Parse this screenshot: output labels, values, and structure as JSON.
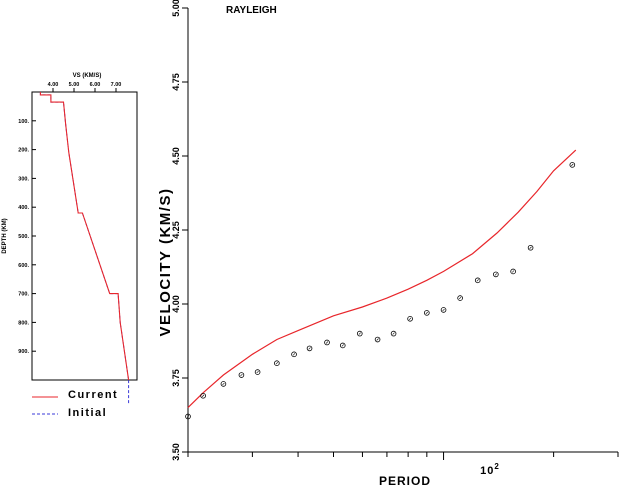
{
  "chart_data": [
    {
      "type": "line",
      "title": "RAYLEIGH",
      "xlabel": "PERIOD",
      "ylabel": "VELOCITY (KM/S)",
      "xscale": "log",
      "xlim": [
        20,
        300
      ],
      "ylim": [
        3.5,
        5.0
      ],
      "yticks": [
        "3.50",
        "3.75",
        "4.00",
        "4.25",
        "4.50",
        "4.75",
        "5.00"
      ],
      "xtick_label_base": "10",
      "xtick_label_exp": "2",
      "grid": false,
      "legend": "none",
      "series": [
        {
          "kind": "line",
          "color": "#e8262b",
          "x": [
            20,
            22,
            25,
            30,
            35,
            40,
            50,
            60,
            70,
            80,
            90,
            100,
            120,
            140,
            160,
            180,
            200,
            230
          ],
          "y": [
            3.65,
            3.7,
            3.76,
            3.83,
            3.88,
            3.91,
            3.96,
            3.99,
            4.02,
            4.05,
            4.08,
            4.11,
            4.17,
            4.24,
            4.31,
            4.38,
            4.45,
            4.52
          ]
        },
        {
          "kind": "scatter",
          "marker": "circle",
          "color": "#000000",
          "x": [
            20,
            22,
            25,
            28,
            31,
            35,
            39,
            43,
            48,
            53,
            59,
            66,
            73,
            81,
            90,
            100,
            111,
            124,
            139,
            155,
            173,
            225
          ],
          "y": [
            3.62,
            3.69,
            3.73,
            3.76,
            3.77,
            3.8,
            3.83,
            3.85,
            3.87,
            3.86,
            3.9,
            3.88,
            3.9,
            3.95,
            3.97,
            3.98,
            4.02,
            4.08,
            4.1,
            4.11,
            4.19,
            4.47
          ]
        }
      ]
    },
    {
      "type": "line",
      "title": "VS (KM/S)",
      "xlabel": "VS (KM/S)",
      "ylabel": "DEPTH (KM)",
      "xlim": [
        3.0,
        8.0
      ],
      "ylim_reversed": [
        0,
        1000
      ],
      "xticks": [
        "4.00",
        "5.00",
        "6.00",
        "7.00"
      ],
      "yticks": [
        "100.",
        "200.",
        "300.",
        "400.",
        "500.",
        "600.",
        "700.",
        "800.",
        "900."
      ],
      "legend": "bottom-left",
      "series": [
        {
          "name": "Current",
          "color": "#e8262b",
          "style": "solid",
          "depth": [
            0,
            10,
            10,
            35,
            35,
            110,
            210,
            420,
            420,
            700,
            700,
            800,
            1000
          ],
          "vs": [
            3.4,
            3.4,
            3.9,
            3.9,
            4.5,
            4.6,
            4.75,
            5.2,
            5.4,
            6.7,
            7.1,
            7.2,
            7.6
          ]
        },
        {
          "name": "Initial",
          "color": "#3a3ad8",
          "style": "dashed",
          "depth": [
            0,
            10,
            10,
            35,
            35,
            110,
            210,
            420,
            420,
            700,
            700,
            800,
            1000
          ],
          "vs": [
            3.4,
            3.4,
            3.9,
            3.9,
            4.5,
            4.6,
            4.75,
            5.2,
            5.4,
            6.7,
            7.1,
            7.2,
            7.6
          ]
        }
      ]
    }
  ]
}
